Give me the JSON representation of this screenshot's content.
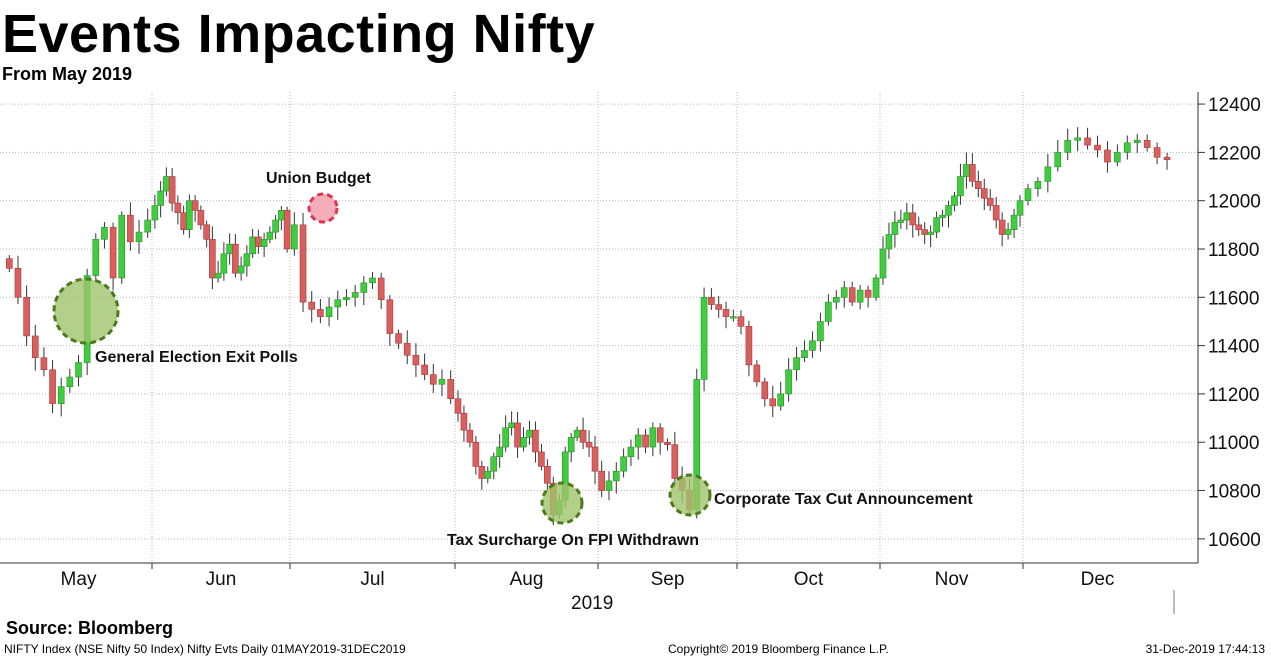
{
  "header": {
    "title": "Events Impacting Nifty",
    "subtitle": "From May 2019"
  },
  "footer": {
    "source": "Source: Bloomberg",
    "left": "NIFTY Index (NSE Nifty 50 Index) Nifty Evts  Daily 01MAY2019-31DEC2019",
    "center": "Copyright© 2019 Bloomberg Finance L.P.",
    "right": "31-Dec-2019 17:44:13"
  },
  "colors": {
    "up": "#3fcc3f",
    "down": "#d95f5f",
    "green_marker": "#9fc46b",
    "green_marker_border": "#4f7a1c",
    "red_marker": "#f29aa8",
    "red_marker_border": "#e0344f",
    "grid": "#b8b8b8"
  },
  "chart_data": {
    "type": "candlestick",
    "title": "Events Impacting Nifty",
    "subtitle": "From May 2019",
    "xlabel": "2019",
    "ylabel": "",
    "ylim": [
      10500,
      12450
    ],
    "yticks": [
      10600,
      10800,
      11000,
      11200,
      11400,
      11600,
      11800,
      12000,
      12200,
      12400
    ],
    "month_labels": [
      "May",
      "Jun",
      "Jul",
      "Aug",
      "Sep",
      "Oct",
      "Nov",
      "Dec"
    ],
    "series": [
      {
        "name": "May",
        "closes": [
          11720,
          11600,
          11440,
          11350,
          11300,
          11160,
          11230,
          11270,
          11330,
          11690,
          11840,
          11890,
          11680,
          11940,
          11830,
          11870,
          11920
        ]
      },
      {
        "name": "Jun",
        "closes": [
          11980,
          12040,
          12100,
          11990,
          11950,
          11880,
          12000,
          11960,
          11900,
          11840,
          11680,
          11700,
          11780,
          11820,
          11700,
          11730,
          11780,
          11850,
          11810,
          11840,
          11870,
          11920,
          11960,
          11800
        ]
      },
      {
        "name": "Jul",
        "closes": [
          11900,
          11580,
          11550,
          11520,
          11560,
          11590,
          11600,
          11620,
          11660,
          11680,
          11590,
          11450,
          11410,
          11360,
          11320,
          11280,
          11240,
          11260,
          11180
        ]
      },
      {
        "name": "Aug",
        "closes": [
          11120,
          11050,
          11000,
          10900,
          10850,
          10880,
          10940,
          10980,
          11060,
          11080,
          10980,
          11020,
          11050,
          10960,
          10900,
          10830,
          10700,
          10760,
          10960,
          11020,
          11050,
          11000,
          10980,
          10880
        ]
      },
      {
        "name": "Sep",
        "closes": [
          10800,
          10840,
          10880,
          10940,
          10980,
          11030,
          10980,
          11060,
          11000,
          10990,
          10850,
          10800,
          10720,
          11260,
          11600,
          11570,
          11550,
          11520,
          11520
        ]
      },
      {
        "name": "Oct",
        "closes": [
          11480,
          11320,
          11250,
          11180,
          11150,
          11200,
          11300,
          11350,
          11380,
          11420,
          11500,
          11580,
          11600,
          11640,
          11580,
          11630,
          11600,
          11680
        ]
      },
      {
        "name": "Nov",
        "closes": [
          11800,
          11860,
          11910,
          11920,
          11950,
          11900,
          11880,
          11860,
          11870,
          11930,
          11940,
          11980,
          12020,
          12100,
          12150,
          12080,
          12050,
          12010,
          11980,
          11920,
          11860,
          11880,
          11940,
          12000
        ]
      },
      {
        "name": "Dec",
        "closes": [
          12050,
          12080,
          12140,
          12200,
          12250,
          12260,
          12230,
          12210,
          12160,
          12200,
          12240,
          12250,
          12220,
          12180,
          12170
        ]
      }
    ],
    "annotations": [
      {
        "label": "General Election Exit Polls",
        "marker": "green",
        "value": 11520
      },
      {
        "label": "Union Budget",
        "marker": "red",
        "value": 11970
      },
      {
        "label": "Tax Surcharge On FPI Withdrawn",
        "marker": "green",
        "value": 10730
      },
      {
        "label": "Corporate Tax Cut Announcement",
        "marker": "green",
        "value": 10760
      }
    ]
  }
}
